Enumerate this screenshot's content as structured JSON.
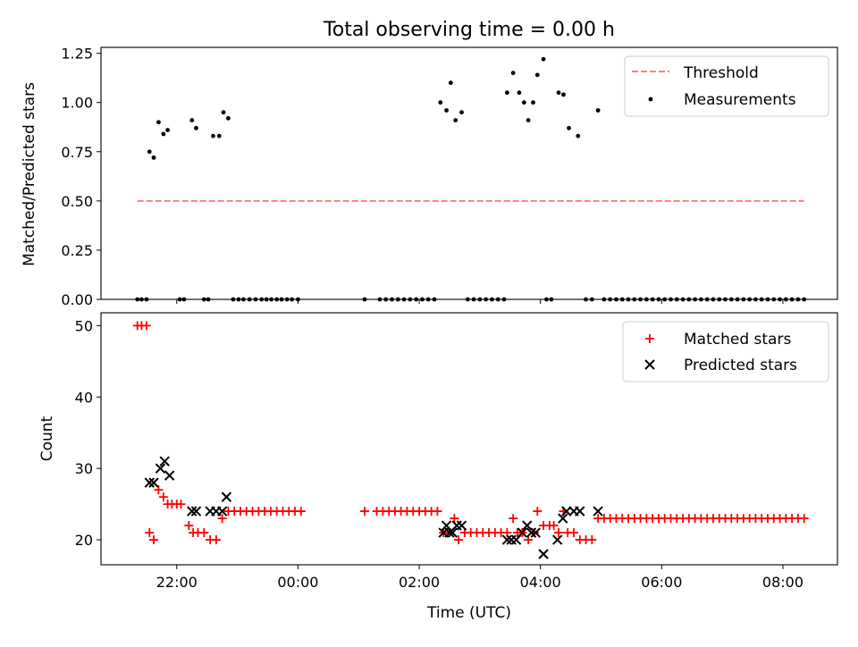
{
  "title": "Total observing time = 0.00 h",
  "chart_data": [
    {
      "type": "scatter",
      "ylabel": "Matched/Predicted stars",
      "xlabel": "",
      "ylim": [
        0,
        1.28
      ],
      "yticks": [
        0,
        0.25,
        0.5,
        0.75,
        1.0,
        1.25
      ],
      "ytick_labels": [
        "0.00",
        "0.25",
        "0.50",
        "0.75",
        "1.00",
        "1.25"
      ],
      "legend_position": "top-right",
      "threshold": {
        "name": "Threshold",
        "value": 0.5,
        "x_start": 21.35,
        "x_end": 32.35,
        "color": "#ff7f7f"
      },
      "series": [
        {
          "name": "Measurements",
          "color": "#000000",
          "points": [
            [
              21.35,
              0
            ],
            [
              21.42,
              0
            ],
            [
              21.5,
              0
            ],
            [
              21.55,
              0.75
            ],
            [
              21.62,
              0.72
            ],
            [
              21.7,
              0.9
            ],
            [
              21.78,
              0.84
            ],
            [
              21.85,
              0.86
            ],
            [
              22.05,
              0
            ],
            [
              22.12,
              0
            ],
            [
              22.25,
              0.91
            ],
            [
              22.32,
              0.87
            ],
            [
              22.45,
              0
            ],
            [
              22.52,
              0
            ],
            [
              22.6,
              0.83
            ],
            [
              22.7,
              0.83
            ],
            [
              22.77,
              0.95
            ],
            [
              22.85,
              0.92
            ],
            [
              22.93,
              0
            ],
            [
              23.02,
              0
            ],
            [
              23.1,
              0
            ],
            [
              23.2,
              0
            ],
            [
              23.3,
              0
            ],
            [
              23.4,
              0
            ],
            [
              23.48,
              0
            ],
            [
              23.56,
              0
            ],
            [
              23.65,
              0
            ],
            [
              23.73,
              0
            ],
            [
              23.82,
              0
            ],
            [
              23.9,
              0
            ],
            [
              24.0,
              0
            ],
            [
              25.1,
              0
            ],
            [
              25.35,
              0
            ],
            [
              25.45,
              0
            ],
            [
              25.55,
              0
            ],
            [
              25.65,
              0
            ],
            [
              25.75,
              0
            ],
            [
              25.85,
              0
            ],
            [
              25.95,
              0
            ],
            [
              26.05,
              0
            ],
            [
              26.15,
              0
            ],
            [
              26.25,
              0
            ],
            [
              26.35,
              1.0
            ],
            [
              26.45,
              0.96
            ],
            [
              26.52,
              1.1
            ],
            [
              26.6,
              0.91
            ],
            [
              26.7,
              0.95
            ],
            [
              26.8,
              0
            ],
            [
              26.9,
              0
            ],
            [
              27.0,
              0
            ],
            [
              27.1,
              0
            ],
            [
              27.2,
              0
            ],
            [
              27.3,
              0
            ],
            [
              27.4,
              0
            ],
            [
              27.45,
              1.05
            ],
            [
              27.55,
              1.15
            ],
            [
              27.65,
              1.05
            ],
            [
              27.73,
              1.0
            ],
            [
              27.8,
              0.91
            ],
            [
              27.88,
              1.0
            ],
            [
              27.95,
              1.14
            ],
            [
              28.05,
              1.22
            ],
            [
              28.1,
              0
            ],
            [
              28.18,
              0
            ],
            [
              28.3,
              1.05
            ],
            [
              28.38,
              1.04
            ],
            [
              28.47,
              0.87
            ],
            [
              28.62,
              0.83
            ],
            [
              28.75,
              0
            ],
            [
              28.85,
              0
            ],
            [
              28.95,
              0.96
            ],
            [
              29.05,
              0
            ],
            [
              29.15,
              0
            ],
            [
              29.25,
              0
            ],
            [
              29.35,
              0
            ],
            [
              29.45,
              0
            ],
            [
              29.55,
              0
            ],
            [
              29.65,
              0
            ],
            [
              29.75,
              0
            ],
            [
              29.85,
              0
            ],
            [
              29.95,
              0
            ],
            [
              30.05,
              0
            ],
            [
              30.15,
              0
            ],
            [
              30.25,
              0
            ],
            [
              30.35,
              0
            ],
            [
              30.45,
              0
            ],
            [
              30.55,
              0
            ],
            [
              30.65,
              0
            ],
            [
              30.75,
              0
            ],
            [
              30.85,
              0
            ],
            [
              30.95,
              0
            ],
            [
              31.05,
              0
            ],
            [
              31.15,
              0
            ],
            [
              31.25,
              0
            ],
            [
              31.35,
              0
            ],
            [
              31.45,
              0
            ],
            [
              31.55,
              0
            ],
            [
              31.65,
              0
            ],
            [
              31.75,
              0
            ],
            [
              31.85,
              0
            ],
            [
              31.95,
              0
            ],
            [
              32.05,
              0
            ],
            [
              32.15,
              0
            ],
            [
              32.25,
              0
            ],
            [
              32.35,
              0
            ]
          ]
        }
      ]
    },
    {
      "type": "scatter",
      "ylabel": "Count",
      "xlabel": "Time (UTC)",
      "ylim": [
        16.5,
        51.8
      ],
      "yticks": [
        20,
        30,
        40,
        50
      ],
      "ytick_labels": [
        "20",
        "30",
        "40",
        "50"
      ],
      "xlim": [
        20.75,
        32.9
      ],
      "xticks": [
        22,
        24,
        26,
        28,
        30,
        32
      ],
      "xtick_labels": [
        "22:00",
        "00:00",
        "02:00",
        "04:00",
        "06:00",
        "08:00"
      ],
      "legend_position": "top-right",
      "series": [
        {
          "name": "Matched stars",
          "color": "#ff0000",
          "points": [
            [
              21.35,
              50
            ],
            [
              21.42,
              50
            ],
            [
              21.5,
              50
            ],
            [
              21.55,
              21
            ],
            [
              21.62,
              20
            ],
            [
              21.7,
              27
            ],
            [
              21.78,
              26
            ],
            [
              21.85,
              25
            ],
            [
              21.92,
              25
            ],
            [
              22.0,
              25
            ],
            [
              22.07,
              25
            ],
            [
              22.2,
              22
            ],
            [
              22.27,
              21
            ],
            [
              22.35,
              21
            ],
            [
              22.45,
              21
            ],
            [
              22.55,
              20
            ],
            [
              22.65,
              20
            ],
            [
              22.75,
              23
            ],
            [
              22.85,
              24
            ],
            [
              22.95,
              24
            ],
            [
              23.05,
              24
            ],
            [
              23.15,
              24
            ],
            [
              23.25,
              24
            ],
            [
              23.35,
              24
            ],
            [
              23.45,
              24
            ],
            [
              23.55,
              24
            ],
            [
              23.65,
              24
            ],
            [
              23.75,
              24
            ],
            [
              23.85,
              24
            ],
            [
              23.95,
              24
            ],
            [
              24.05,
              24
            ],
            [
              25.1,
              24
            ],
            [
              25.3,
              24
            ],
            [
              25.4,
              24
            ],
            [
              25.5,
              24
            ],
            [
              25.6,
              24
            ],
            [
              25.7,
              24
            ],
            [
              25.8,
              24
            ],
            [
              25.9,
              24
            ],
            [
              26.0,
              24
            ],
            [
              26.1,
              24
            ],
            [
              26.2,
              24
            ],
            [
              26.3,
              24
            ],
            [
              26.4,
              21
            ],
            [
              26.5,
              21
            ],
            [
              26.58,
              23
            ],
            [
              26.65,
              20
            ],
            [
              26.75,
              21
            ],
            [
              26.85,
              21
            ],
            [
              26.95,
              21
            ],
            [
              27.05,
              21
            ],
            [
              27.15,
              21
            ],
            [
              27.25,
              21
            ],
            [
              27.35,
              21
            ],
            [
              27.45,
              21
            ],
            [
              27.55,
              23
            ],
            [
              27.62,
              21
            ],
            [
              27.7,
              21
            ],
            [
              27.8,
              20
            ],
            [
              27.9,
              21
            ],
            [
              27.95,
              24
            ],
            [
              28.05,
              22
            ],
            [
              28.15,
              22
            ],
            [
              28.22,
              22
            ],
            [
              28.3,
              21
            ],
            [
              28.38,
              24
            ],
            [
              28.45,
              21
            ],
            [
              28.55,
              21
            ],
            [
              28.65,
              20
            ],
            [
              28.75,
              20
            ],
            [
              28.85,
              20
            ],
            [
              28.95,
              23
            ],
            [
              29.05,
              23
            ],
            [
              29.15,
              23
            ],
            [
              29.25,
              23
            ],
            [
              29.35,
              23
            ],
            [
              29.45,
              23
            ],
            [
              29.55,
              23
            ],
            [
              29.65,
              23
            ],
            [
              29.75,
              23
            ],
            [
              29.85,
              23
            ],
            [
              29.95,
              23
            ],
            [
              30.05,
              23
            ],
            [
              30.15,
              23
            ],
            [
              30.25,
              23
            ],
            [
              30.35,
              23
            ],
            [
              30.45,
              23
            ],
            [
              30.55,
              23
            ],
            [
              30.65,
              23
            ],
            [
              30.75,
              23
            ],
            [
              30.85,
              23
            ],
            [
              30.95,
              23
            ],
            [
              31.05,
              23
            ],
            [
              31.15,
              23
            ],
            [
              31.25,
              23
            ],
            [
              31.35,
              23
            ],
            [
              31.45,
              23
            ],
            [
              31.55,
              23
            ],
            [
              31.65,
              23
            ],
            [
              31.75,
              23
            ],
            [
              31.85,
              23
            ],
            [
              31.95,
              23
            ],
            [
              32.05,
              23
            ],
            [
              32.15,
              23
            ],
            [
              32.25,
              23
            ],
            [
              32.35,
              23
            ]
          ]
        },
        {
          "name": "Predicted stars",
          "color": "#000000",
          "points": [
            [
              21.55,
              28
            ],
            [
              21.62,
              28
            ],
            [
              21.73,
              30
            ],
            [
              21.8,
              31
            ],
            [
              21.88,
              29
            ],
            [
              22.25,
              24
            ],
            [
              22.32,
              24
            ],
            [
              22.55,
              24
            ],
            [
              22.65,
              24
            ],
            [
              22.75,
              24
            ],
            [
              22.82,
              26
            ],
            [
              26.4,
              21
            ],
            [
              26.45,
              22
            ],
            [
              26.5,
              21
            ],
            [
              26.55,
              21
            ],
            [
              26.62,
              22
            ],
            [
              26.7,
              22
            ],
            [
              27.45,
              20
            ],
            [
              27.52,
              20
            ],
            [
              27.6,
              20
            ],
            [
              27.7,
              21
            ],
            [
              27.78,
              22
            ],
            [
              27.85,
              21
            ],
            [
              27.92,
              21
            ],
            [
              28.05,
              18
            ],
            [
              28.28,
              20
            ],
            [
              28.37,
              23
            ],
            [
              28.43,
              24
            ],
            [
              28.55,
              24
            ],
            [
              28.65,
              24
            ],
            [
              28.95,
              24
            ]
          ]
        }
      ]
    }
  ]
}
